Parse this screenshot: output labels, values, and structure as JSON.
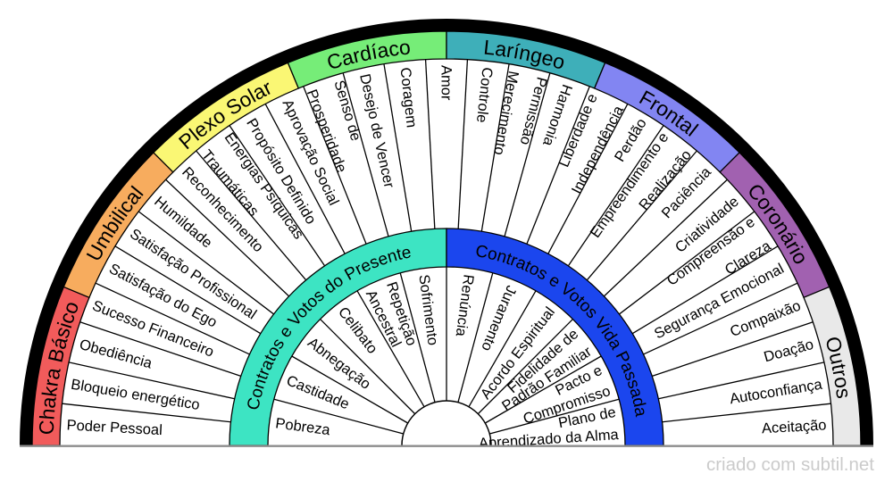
{
  "wheel": {
    "outer_groups": [
      {
        "label": "Chakra Básico",
        "color": "#F15B5B",
        "items": [
          "Poder Pessoal",
          "Bloqueio energético",
          "Obediência",
          "Sucesso Financeiro"
        ]
      },
      {
        "label": "Umbilical",
        "color": "#F7AC5E",
        "items": [
          "Satisfação do Ego",
          "Satisfação Profissional",
          "Humildade"
        ]
      },
      {
        "label": "Plexo Solar",
        "color": "#FAF774",
        "items": [
          "Reconhecimento",
          "Energias Psíquicas\nTraumáticas",
          "Propósito Definido",
          "Aprovação Social"
        ]
      },
      {
        "label": "Cardíaco",
        "color": "#76ED78",
        "items": [
          "Senso de\nProsperidade",
          "Desejo de Vencer",
          "Coragem",
          "Amor"
        ]
      },
      {
        "label": "Laríngeo",
        "color": "#3EAFB9",
        "items": [
          "Controle",
          "Merecimento\nPermissão",
          "Harmonia",
          "Liberdade e\nIndependência"
        ]
      },
      {
        "label": "Frontal",
        "color": "#8285F2",
        "items": [
          "Perdão",
          "Empreendimento e\nRealização",
          "Paciência"
        ]
      },
      {
        "label": "Coronário",
        "color": "#A161B0",
        "items": [
          "Criatividade",
          "Compreensão e\nClareza",
          "Segurança Emocional"
        ]
      },
      {
        "label": "Outros",
        "color": "#E9E9E9",
        "items": [
          "Compaixão",
          "Doação",
          "Autoconfiança",
          "Aceitação"
        ]
      }
    ],
    "inner_groups": [
      {
        "label": "Contratos e Votos do Presente",
        "color": "#3DE4C3",
        "items": [
          "Pobreza",
          "Castidade",
          "Abnegação",
          "Celibato",
          "Repetição\nAncestral",
          "Sofrimento"
        ]
      },
      {
        "label": "Contratos e Votos Vida Passada",
        "color": "#1B46EE",
        "items": [
          "Renúncia",
          "Juramento",
          "Acordo Espiritual",
          "Fidelidade de\nPadrão Familiar",
          "Pacto e\nCompromisso",
          "Plano de\nAprendizado da Alma"
        ]
      }
    ],
    "colors": {
      "outline": "#000000",
      "baseline": "#8C8C8C",
      "background": "#FFFFFF"
    }
  },
  "footer": {
    "credit": "criado com subtil.net"
  }
}
